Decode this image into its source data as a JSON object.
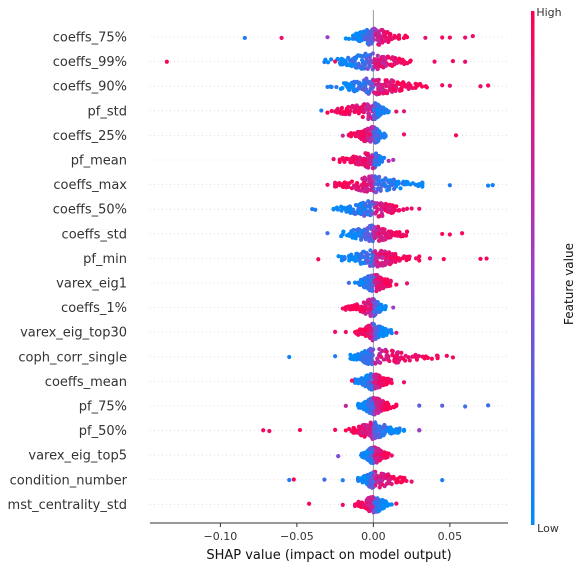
{
  "chart_data": {
    "type": "scatter",
    "xlabel": "SHAP value (impact on model output)",
    "xlim": [
      -0.146,
      0.088
    ],
    "xticks": [
      "−0.10",
      "−0.05",
      "0.00",
      "0.05"
    ],
    "xtick_values": [
      -0.1,
      -0.05,
      0.0,
      0.05
    ],
    "grid": false,
    "colorbar": {
      "label": "Feature value",
      "high_label": "High",
      "low_label": "Low",
      "high_color": "#ff0052",
      "mid_color": "#9b3fc9",
      "low_color": "#008bfb"
    },
    "features": [
      {
        "name": "coeffs_75%",
        "spread": [
          -0.018,
          0.022
        ],
        "high_side": 1,
        "outliers": [
          [
            -0.084,
            0.1
          ],
          [
            -0.06,
            0.9
          ],
          [
            -0.03,
            0.5
          ],
          [
            0.034,
            0.85
          ],
          [
            0.045,
            0.9
          ],
          [
            0.05,
            0.95
          ],
          [
            0.06,
            0.9
          ],
          [
            0.065,
            0.9
          ]
        ]
      },
      {
        "name": "coeffs_99%",
        "spread": [
          -0.032,
          0.025
        ],
        "high_side": 1,
        "outliers": [
          [
            -0.135,
            0.95
          ],
          [
            -0.025,
            0.9
          ],
          [
            0.04,
            0.9
          ],
          [
            0.052,
            0.9
          ],
          [
            0.06,
            0.9
          ]
        ]
      },
      {
        "name": "coeffs_90%",
        "spread": [
          -0.028,
          0.035
        ],
        "high_side": 1,
        "outliers": [
          [
            -0.03,
            0.1
          ],
          [
            0.045,
            0.9
          ],
          [
            0.05,
            0.9
          ],
          [
            0.07,
            0.9
          ],
          [
            0.075,
            0.95
          ]
        ]
      },
      {
        "name": "pf_std",
        "spread": [
          -0.03,
          0.01
        ],
        "high_side": -1,
        "outliers": [
          [
            -0.034,
            0.1
          ],
          [
            0.02,
            0.8
          ],
          [
            0.015,
            0.9
          ]
        ]
      },
      {
        "name": "coeffs_25%",
        "spread": [
          -0.016,
          0.008
        ],
        "high_side": -1,
        "outliers": [
          [
            -0.02,
            0.7
          ],
          [
            0.02,
            0.9
          ],
          [
            0.054,
            0.95
          ]
        ]
      },
      {
        "name": "pf_mean",
        "spread": [
          -0.022,
          0.007
        ],
        "high_side": -1,
        "outliers": [
          [
            -0.026,
            0.9
          ],
          [
            0.013,
            0.6
          ],
          [
            0.01,
            0.6
          ]
        ]
      },
      {
        "name": "coeffs_max",
        "spread": [
          -0.025,
          0.032
        ],
        "high_side": -1,
        "outliers": [
          [
            -0.03,
            0.9
          ],
          [
            0.05,
            0.1
          ],
          [
            0.075,
            0.05
          ],
          [
            0.078,
            0.05
          ]
        ]
      },
      {
        "name": "coeffs_50%",
        "spread": [
          -0.026,
          0.022
        ],
        "high_side": 1,
        "outliers": [
          [
            -0.04,
            0.1
          ],
          [
            -0.038,
            0.1
          ],
          [
            0.03,
            0.9
          ],
          [
            0.025,
            0.9
          ]
        ]
      },
      {
        "name": "coeffs_std",
        "spread": [
          -0.024,
          0.022
        ],
        "high_side": 1,
        "outliers": [
          [
            -0.03,
            0.2
          ],
          [
            0.045,
            0.95
          ],
          [
            0.05,
            0.95
          ],
          [
            0.058,
            0.95
          ]
        ]
      },
      {
        "name": "pf_min",
        "spread": [
          -0.025,
          0.03
        ],
        "high_side": 1,
        "outliers": [
          [
            -0.036,
            0.95
          ],
          [
            0.037,
            0.9
          ],
          [
            0.046,
            0.95
          ],
          [
            0.07,
            0.95
          ],
          [
            0.074,
            0.95
          ]
        ]
      },
      {
        "name": "varex_eig1",
        "spread": [
          -0.012,
          0.015
        ],
        "high_side": 1,
        "outliers": [
          [
            -0.016,
            0.2
          ],
          [
            0.022,
            0.85
          ]
        ]
      },
      {
        "name": "coeffs_1%",
        "spread": [
          -0.018,
          0.008
        ],
        "high_side": -1,
        "outliers": [
          [
            -0.02,
            0.9
          ],
          [
            0.013,
            0.5
          ]
        ]
      },
      {
        "name": "varex_eig_top30",
        "spread": [
          -0.012,
          0.012
        ],
        "high_side": -1,
        "outliers": [
          [
            -0.025,
            0.9
          ],
          [
            -0.018,
            0.9
          ],
          [
            0.015,
            0.8
          ]
        ]
      },
      {
        "name": "coph_corr_single",
        "spread": [
          -0.015,
          0.042
        ],
        "high_side": 1,
        "outliers": [
          [
            -0.055,
            0.05
          ],
          [
            -0.025,
            0.1
          ],
          [
            0.048,
            0.95
          ],
          [
            0.052,
            0.95
          ]
        ]
      },
      {
        "name": "coeffs_mean",
        "spread": [
          -0.012,
          0.012
        ],
        "high_side": 1,
        "outliers": [
          [
            -0.014,
            0.9
          ],
          [
            0.02,
            0.9
          ]
        ]
      },
      {
        "name": "pf_75%",
        "spread": [
          -0.01,
          0.015
        ],
        "high_side": 1,
        "outliers": [
          [
            -0.018,
            0.7
          ],
          [
            0.03,
            0.3
          ],
          [
            0.045,
            0.3
          ],
          [
            0.06,
            0.2
          ],
          [
            0.075,
            0.2
          ]
        ]
      },
      {
        "name": "pf_50%",
        "spread": [
          -0.018,
          0.02
        ],
        "high_side": -1,
        "outliers": [
          [
            -0.072,
            0.95
          ],
          [
            -0.068,
            0.95
          ],
          [
            -0.048,
            0.95
          ],
          [
            -0.025,
            0.95
          ],
          [
            0.03,
            0.9
          ],
          [
            0.03,
            0.5
          ]
        ]
      },
      {
        "name": "varex_eig_top5",
        "spread": [
          -0.008,
          0.01
        ],
        "high_side": 1,
        "outliers": [
          [
            -0.023,
            0.4
          ],
          [
            0.012,
            0.9
          ]
        ]
      },
      {
        "name": "condition_number",
        "spread": [
          -0.01,
          0.025
        ],
        "high_side": 1,
        "outliers": [
          [
            -0.055,
            0.1
          ],
          [
            -0.052,
            0.95
          ],
          [
            -0.032,
            0.2
          ],
          [
            -0.02,
            0.1
          ],
          [
            0.045,
            0.1
          ]
        ]
      },
      {
        "name": "mst_centrality_std",
        "spread": [
          -0.012,
          0.012
        ],
        "high_side": -1,
        "outliers": [
          [
            -0.042,
            0.95
          ],
          [
            -0.02,
            0.9
          ],
          [
            0.015,
            0.9
          ]
        ]
      }
    ]
  }
}
